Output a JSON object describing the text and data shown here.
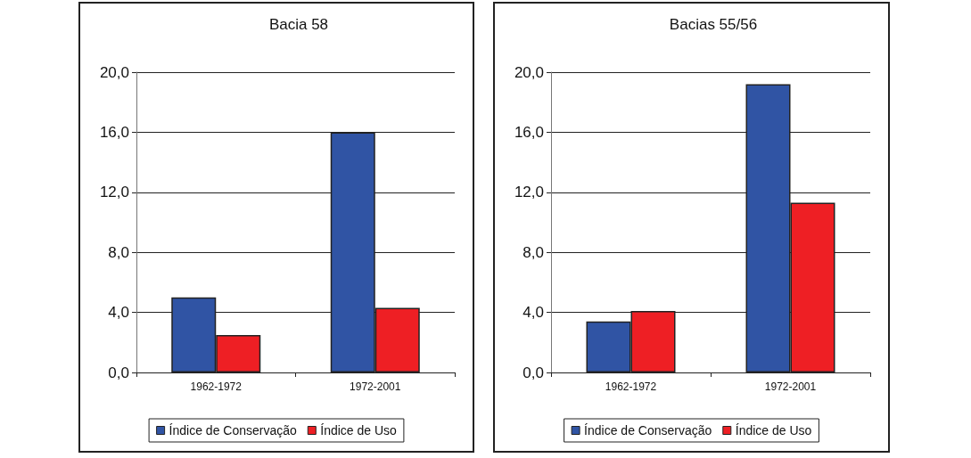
{
  "chart_data": [
    {
      "type": "bar",
      "title": "Bacia 58",
      "categories": [
        "1962-1972",
        "1972-2001"
      ],
      "series": [
        {
          "name": "Índice de Conservação",
          "color": "#3054a4",
          "values": [
            5.0,
            16.0
          ]
        },
        {
          "name": "Índice de Uso",
          "color": "#ee1f24",
          "values": [
            2.5,
            4.3
          ]
        }
      ],
      "ylim": [
        0,
        20
      ],
      "yticks": [
        {
          "value": 0,
          "label": "0,0"
        },
        {
          "value": 4,
          "label": "4,0"
        },
        {
          "value": 8,
          "label": "8,0"
        },
        {
          "value": 12,
          "label": "12,0"
        },
        {
          "value": 16,
          "label": "16,0"
        },
        {
          "value": 20,
          "label": "20,0"
        }
      ],
      "grid": "y",
      "legend": "bottom"
    },
    {
      "type": "bar",
      "title": "Bacias 55/56",
      "categories": [
        "1962-1972",
        "1972-2001"
      ],
      "series": [
        {
          "name": "Índice de Conservação",
          "color": "#3054a4",
          "values": [
            3.4,
            19.2
          ]
        },
        {
          "name": "Índice de Uso",
          "color": "#ee1f24",
          "values": [
            4.1,
            11.3
          ]
        }
      ],
      "ylim": [
        0,
        20
      ],
      "yticks": [
        {
          "value": 0,
          "label": "0,0"
        },
        {
          "value": 4,
          "label": "4,0"
        },
        {
          "value": 8,
          "label": "8,0"
        },
        {
          "value": 12,
          "label": "12,0"
        },
        {
          "value": 16,
          "label": "16,0"
        },
        {
          "value": 20,
          "label": "20,0"
        }
      ],
      "grid": "y",
      "legend": "bottom"
    }
  ]
}
